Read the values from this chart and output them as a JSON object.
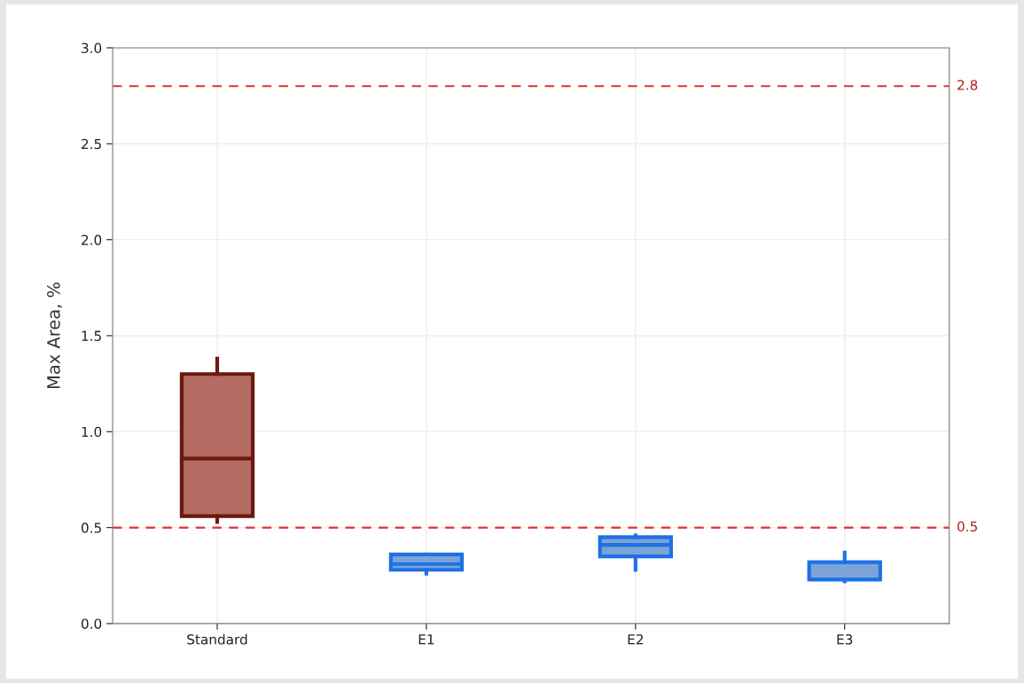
{
  "chart_data": {
    "type": "box",
    "ylabel": "Max Area, %",
    "categories": [
      "Standard",
      "E1",
      "E2",
      "E3"
    ],
    "boxes": [
      {
        "low": 0.53,
        "q1": 0.56,
        "median": 0.86,
        "q3": 1.3,
        "high": 1.38
      },
      {
        "low": 0.26,
        "q1": 0.28,
        "median": 0.31,
        "q3": 0.36,
        "high": 0.36
      },
      {
        "low": 0.28,
        "q1": 0.35,
        "median": 0.41,
        "q3": 0.45,
        "high": 0.46
      },
      {
        "low": 0.22,
        "q1": 0.23,
        "median": 0.23,
        "q3": 0.32,
        "high": 0.37
      }
    ],
    "colors": [
      "#b36b62",
      "#7ba3d8",
      "#7ba3d8",
      "#7ba3d8"
    ],
    "ylim": [
      0,
      3
    ],
    "yticks": [
      {
        "value": 0,
        "label": "0.0"
      },
      {
        "value": 0.5,
        "label": "0.5"
      },
      {
        "value": 1,
        "label": "1.0"
      },
      {
        "value": 1.5,
        "label": "1.5"
      },
      {
        "value": 2,
        "label": "2.0"
      },
      {
        "value": 2.5,
        "label": "2.5"
      },
      {
        "value": 3,
        "label": "3.0"
      }
    ],
    "ref_lines": [
      {
        "axis": "y",
        "value": 2.8,
        "label": "2.8",
        "color": "#e03030",
        "line_style": "dashed"
      },
      {
        "axis": "y",
        "value": 0.5,
        "label": "0.5",
        "color": "#e03030",
        "line_style": "dashed"
      }
    ],
    "grid": true
  }
}
